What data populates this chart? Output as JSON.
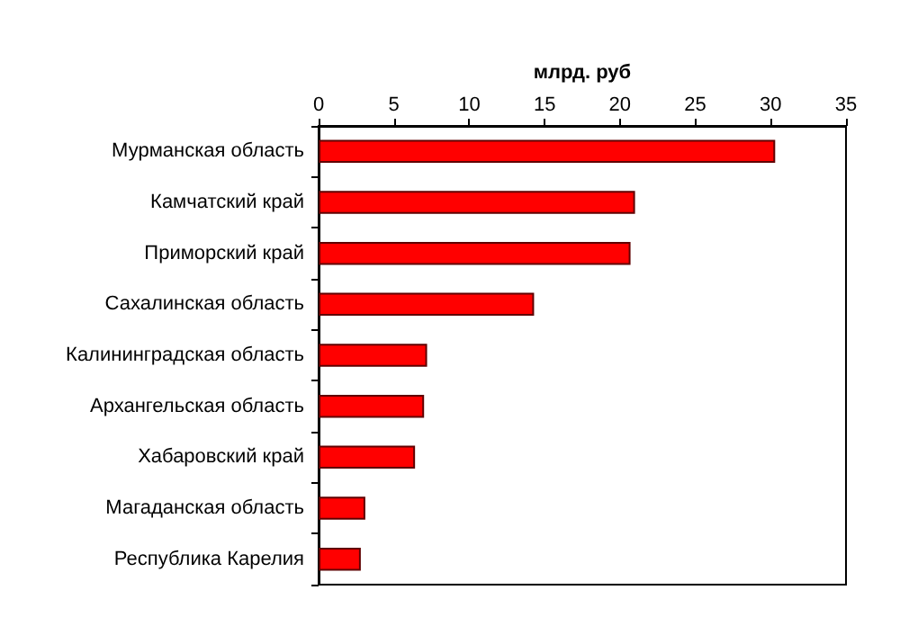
{
  "chart_data": {
    "type": "bar",
    "orientation": "horizontal",
    "xlabel": "млрд. руб",
    "categories": [
      "Мурманская область",
      "Камчатский край",
      "Приморский край",
      "Сахалинская область",
      "Калининградская область",
      "Архангельская область",
      "Хабаровский край",
      "Магаданская область",
      "Республика Карелия"
    ],
    "values": [
      30.3,
      21.0,
      20.7,
      14.3,
      7.2,
      7.0,
      6.4,
      3.1,
      2.8
    ],
    "color": "#ff0000",
    "xlim": [
      0,
      35
    ],
    "xticks": [
      0,
      5,
      10,
      15,
      20,
      25,
      30,
      35
    ],
    "grid": false
  }
}
